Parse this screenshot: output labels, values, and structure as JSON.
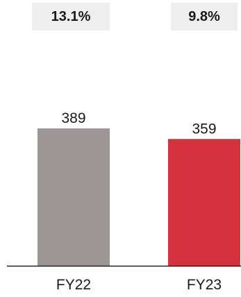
{
  "chart_data": {
    "type": "bar",
    "title": "",
    "xlabel": "",
    "ylabel": "",
    "categories": [
      "FY22",
      "FY23"
    ],
    "values": [
      389,
      359
    ],
    "data_labels": [
      "389",
      "359"
    ],
    "percent_labels": [
      "13.1%",
      "9.8%"
    ],
    "colors": [
      "#9c9794",
      "#d4323e"
    ],
    "ylim": [
      0,
      389
    ],
    "grid": false,
    "legend": "none"
  }
}
